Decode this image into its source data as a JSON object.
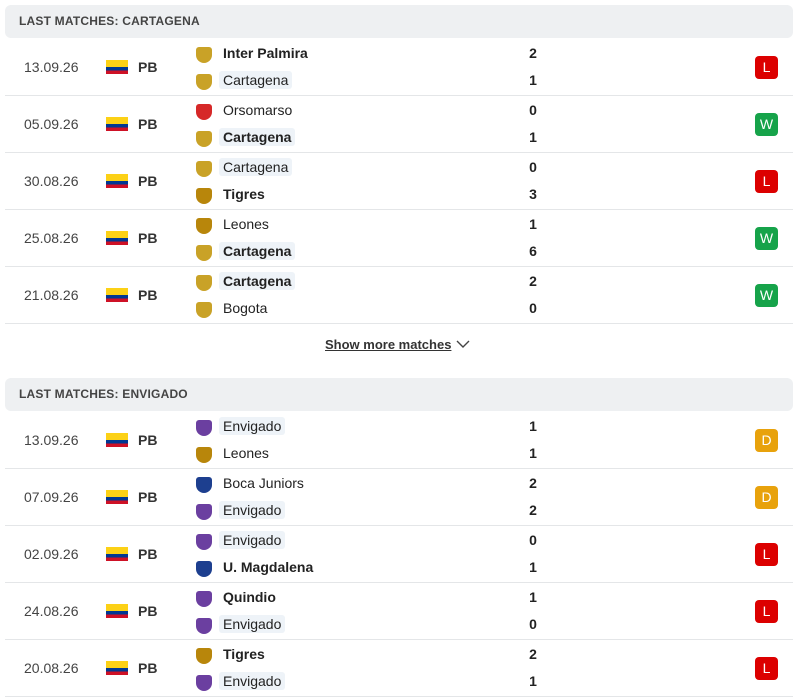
{
  "sections": [
    {
      "title": "LAST MATCHES: CARTAGENA",
      "matches": [
        {
          "date": "13.09.26",
          "league": "PB",
          "home": {
            "name": "Inter Palmira",
            "score": 2,
            "bold": true,
            "highlight": false
          },
          "away": {
            "name": "Cartagena",
            "score": 1,
            "bold": false,
            "highlight": true
          },
          "result": "L"
        },
        {
          "date": "05.09.26",
          "league": "PB",
          "home": {
            "name": "Orsomarso",
            "score": 0,
            "bold": false,
            "highlight": false
          },
          "away": {
            "name": "Cartagena",
            "score": 1,
            "bold": true,
            "highlight": true
          },
          "result": "W"
        },
        {
          "date": "30.08.26",
          "league": "PB",
          "home": {
            "name": "Cartagena",
            "score": 0,
            "bold": false,
            "highlight": true
          },
          "away": {
            "name": "Tigres",
            "score": 3,
            "bold": true,
            "highlight": false
          },
          "result": "L"
        },
        {
          "date": "25.08.26",
          "league": "PB",
          "home": {
            "name": "Leones",
            "score": 1,
            "bold": false,
            "highlight": false
          },
          "away": {
            "name": "Cartagena",
            "score": 6,
            "bold": true,
            "highlight": true
          },
          "result": "W"
        },
        {
          "date": "21.08.26",
          "league": "PB",
          "home": {
            "name": "Cartagena",
            "score": 2,
            "bold": true,
            "highlight": true
          },
          "away": {
            "name": "Bogota",
            "score": 0,
            "bold": false,
            "highlight": false
          },
          "result": "W"
        }
      ],
      "show_more": "Show more matches"
    },
    {
      "title": "LAST MATCHES: ENVIGADO",
      "matches": [
        {
          "date": "13.09.26",
          "league": "PB",
          "home": {
            "name": "Envigado",
            "score": 1,
            "bold": false,
            "highlight": true
          },
          "away": {
            "name": "Leones",
            "score": 1,
            "bold": false,
            "highlight": false
          },
          "result": "D"
        },
        {
          "date": "07.09.26",
          "league": "PB",
          "home": {
            "name": "Boca Juniors",
            "score": 2,
            "bold": false,
            "highlight": false
          },
          "away": {
            "name": "Envigado",
            "score": 2,
            "bold": false,
            "highlight": true
          },
          "result": "D"
        },
        {
          "date": "02.09.26",
          "league": "PB",
          "home": {
            "name": "Envigado",
            "score": 0,
            "bold": false,
            "highlight": true
          },
          "away": {
            "name": "U. Magdalena",
            "score": 1,
            "bold": true,
            "highlight": false
          },
          "result": "L"
        },
        {
          "date": "24.08.26",
          "league": "PB",
          "home": {
            "name": "Quindio",
            "score": 1,
            "bold": true,
            "highlight": false
          },
          "away": {
            "name": "Envigado",
            "score": 0,
            "bold": false,
            "highlight": true
          },
          "result": "L"
        },
        {
          "date": "20.08.26",
          "league": "PB",
          "home": {
            "name": "Tigres",
            "score": 2,
            "bold": true,
            "highlight": false
          },
          "away": {
            "name": "Envigado",
            "score": 1,
            "bold": false,
            "highlight": true
          },
          "result": "L"
        }
      ]
    }
  ]
}
